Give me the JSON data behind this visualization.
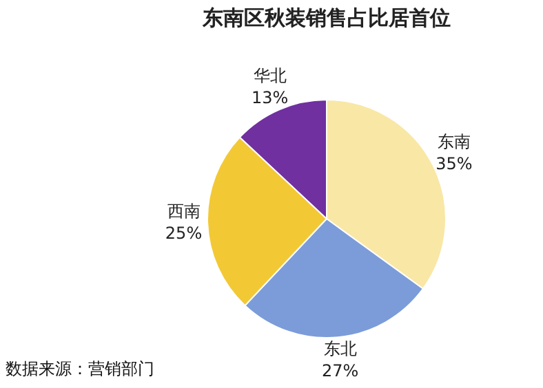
{
  "chart_data": {
    "type": "pie",
    "title": "东南区秋装销售占比居首位",
    "categories": [
      "东南",
      "东北",
      "西南",
      "华北"
    ],
    "values": [
      35,
      27,
      25,
      13
    ],
    "colors": [
      "#f9e7a6",
      "#7b9cd8",
      "#f2c935",
      "#7030a0"
    ],
    "value_labels": [
      "35%",
      "27%",
      "25%",
      "13%"
    ],
    "annotations": [
      "数据来源：营销部门"
    ],
    "legend": false
  }
}
